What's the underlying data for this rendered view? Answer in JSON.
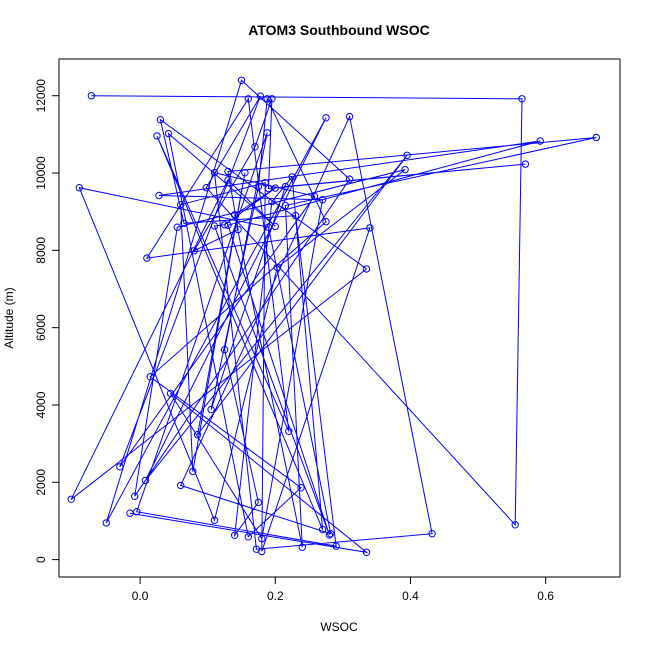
{
  "chart_data": {
    "type": "line",
    "title": "ATOM3 Southbound WSOC",
    "xlabel": "WSOC",
    "ylabel": "Altitude (m)",
    "xlim": [
      -0.12,
      0.71
    ],
    "ylim": [
      -450,
      12950
    ],
    "x_ticks": [
      0.0,
      0.2,
      0.4,
      0.6
    ],
    "x_tick_labels": [
      "0.0",
      "0.2",
      "0.4",
      "0.6"
    ],
    "y_ticks": [
      0,
      2000,
      4000,
      6000,
      8000,
      10000,
      12000
    ],
    "y_tick_labels": [
      "0",
      "2000",
      "4000",
      "6000",
      "8000",
      "10000",
      "12000"
    ],
    "grid": false,
    "legend": "none",
    "series": [
      {
        "color": "#0000ff",
        "marker": "open-circle",
        "x": [
          -0.072,
          0.565,
          0.555,
          0.098,
          0.178,
          -0.03,
          0.258,
          0.11,
          0.172,
          0.432,
          0.31,
          0.06,
          0.282,
          0.19,
          -0.09,
          0.11,
          0.203,
          0.392,
          0.055,
          -0.008,
          0.31,
          0.15,
          -0.05,
          0.275,
          0.008,
          0.395,
          0.085,
          0.155,
          0.078,
          0.06,
          0.185,
          0.18,
          0.34,
          0.01,
          0.16,
          0.22,
          0.025,
          0.27,
          0.225,
          0.195,
          0.14,
          0.175,
          0.125,
          0.188,
          -0.005,
          0.29,
          0.23,
          0.065,
          0.03,
          0.335,
          -0.102,
          0.13,
          0.2,
          0.042,
          0.16,
          0.238,
          0.015,
          0.275,
          0.188,
          0.175,
          0.105,
          0.215,
          0.57,
          0.19,
          0.195,
          0.17,
          0.08,
          0.145,
          0.13,
          0.675,
          0.215,
          0.24,
          0.14,
          0.2,
          0.125,
          0.11,
          0.28,
          0.13,
          0.592,
          0.028,
          0.27,
          0.18,
          0.045,
          0.335,
          -0.015
        ],
        "y": [
          12000,
          11920,
          900,
          9620,
          11990,
          2400,
          9400,
          10010,
          270,
          670,
          11460,
          1920,
          670,
          8600,
          9620,
          1020,
          7560,
          10090,
          8600,
          1640,
          9840,
          12400,
          950,
          11430,
          2050,
          10460,
          3230,
          10010,
          2280,
          9180,
          9750,
          210,
          8580,
          7800,
          11920,
          3320,
          10960,
          780,
          9900,
          9260,
          630,
          1480,
          5430,
          11040,
          1240,
          350,
          8900,
          8700,
          11380,
          7520,
          1560,
          9820,
          8620,
          11020,
          590,
          1860,
          4730,
          8740,
          11920,
          9650,
          3880,
          9650,
          10230,
          9600,
          11920,
          10680,
          7990,
          8540,
          10040,
          10920,
          9160,
          320,
          8920,
          9610,
          8660,
          8630,
          640,
          8650,
          10830,
          9420,
          9310,
          540,
          4300,
          190,
          1200
        ]
      }
    ]
  }
}
